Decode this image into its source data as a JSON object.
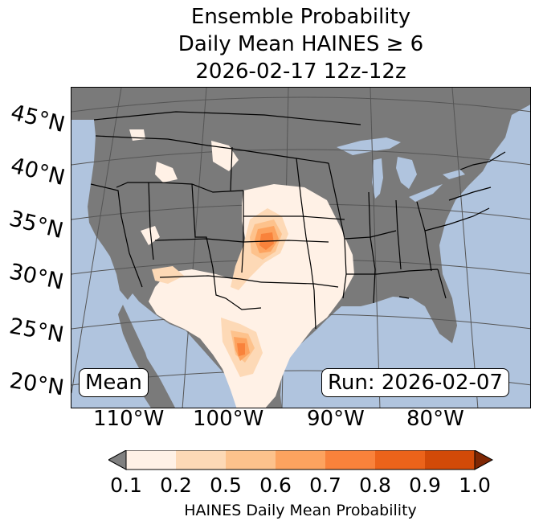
{
  "title": {
    "line1": "Ensemble Probability",
    "line2": "Daily Mean HAINES ≥ 6",
    "line3": "2026-02-17 12z-12z"
  },
  "map": {
    "latitude_labels": [
      "45°N",
      "40°N",
      "35°N",
      "30°N",
      "25°N",
      "20°N"
    ],
    "longitude_labels": [
      "110°W",
      "100°W",
      "90°W",
      "80°W"
    ],
    "stat_label": "Mean",
    "run_label": "Run: 2026-02-07",
    "colors": {
      "ocean": "#b0c4de",
      "land": "#7a7a7a",
      "lakes": "#b0c4de",
      "borders": "#000000"
    }
  },
  "colorbar": {
    "label": "HAINES Daily Mean Probability",
    "ticks": [
      "0.1",
      "0.2",
      "0.5",
      "0.6",
      "0.7",
      "0.8",
      "0.9",
      "1.0"
    ],
    "under_color": "#808080",
    "over_color": "#7f2704",
    "bins": [
      {
        "from": 0.1,
        "to": 0.2,
        "color": "#fff1e6"
      },
      {
        "from": 0.2,
        "to": 0.5,
        "color": "#fdd9b6"
      },
      {
        "from": 0.5,
        "to": 0.6,
        "color": "#fdc28c"
      },
      {
        "from": 0.6,
        "to": 0.7,
        "color": "#fda35f"
      },
      {
        "from": 0.7,
        "to": 0.8,
        "color": "#f9823b"
      },
      {
        "from": 0.8,
        "to": 0.9,
        "color": "#ec631a"
      },
      {
        "from": 0.9,
        "to": 1.0,
        "color": "#d24a08"
      }
    ]
  }
}
